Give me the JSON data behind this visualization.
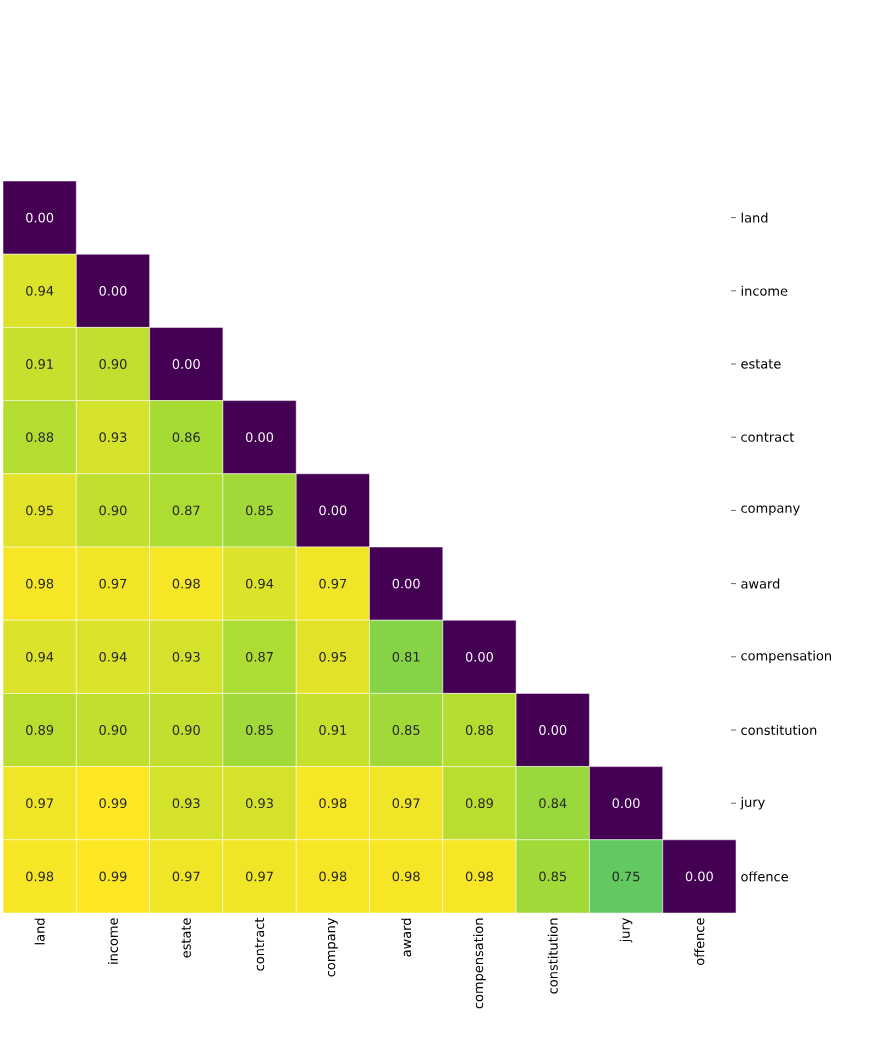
{
  "chart_data": {
    "type": "heatmap",
    "categories": [
      "land",
      "income",
      "estate",
      "contract",
      "company",
      "award",
      "compensation",
      "constitution",
      "jury",
      "offence"
    ],
    "y_categories": [
      "land",
      "income",
      "estate",
      "contract",
      "company",
      "award",
      "compensation",
      "constitution",
      "jury",
      "offence"
    ],
    "cells": [
      [
        0.0,
        null,
        null,
        null,
        null,
        null,
        null,
        null,
        null,
        null
      ],
      [
        0.94,
        0.0,
        null,
        null,
        null,
        null,
        null,
        null,
        null,
        null
      ],
      [
        0.91,
        0.9,
        0.0,
        null,
        null,
        null,
        null,
        null,
        null,
        null
      ],
      [
        0.88,
        0.93,
        0.86,
        0.0,
        null,
        null,
        null,
        null,
        null,
        null
      ],
      [
        0.95,
        0.9,
        0.87,
        0.85,
        0.0,
        null,
        null,
        null,
        null,
        null
      ],
      [
        0.98,
        0.97,
        0.98,
        0.94,
        0.97,
        0.0,
        null,
        null,
        null,
        null
      ],
      [
        0.94,
        0.94,
        0.93,
        0.87,
        0.95,
        0.81,
        0.0,
        null,
        null,
        null
      ],
      [
        0.89,
        0.9,
        0.9,
        0.85,
        0.91,
        0.85,
        0.88,
        0.0,
        null,
        null
      ],
      [
        0.97,
        0.99,
        0.93,
        0.93,
        0.98,
        0.97,
        0.89,
        0.84,
        0.0,
        null
      ],
      [
        0.98,
        0.99,
        0.97,
        0.97,
        0.98,
        0.98,
        0.98,
        0.85,
        0.75,
        0.0
      ]
    ],
    "cell_labels": [
      [
        "0.00",
        null,
        null,
        null,
        null,
        null,
        null,
        null,
        null,
        null
      ],
      [
        "0.94",
        "0.00",
        null,
        null,
        null,
        null,
        null,
        null,
        null,
        null
      ],
      [
        "0.91",
        "0.90",
        "0.00",
        null,
        null,
        null,
        null,
        null,
        null,
        null
      ],
      [
        "0.88",
        "0.93",
        "0.86",
        "0.00",
        null,
        null,
        null,
        null,
        null,
        null
      ],
      [
        "0.95",
        "0.90",
        "0.87",
        "0.85",
        "0.00",
        null,
        null,
        null,
        null,
        null
      ],
      [
        "0.98",
        "0.97",
        "0.98",
        "0.94",
        "0.97",
        "0.00",
        null,
        null,
        null,
        null
      ],
      [
        "0.94",
        "0.94",
        "0.93",
        "0.87",
        "0.95",
        "0.81",
        "0.00",
        null,
        null,
        null
      ],
      [
        "0.89",
        "0.90",
        "0.90",
        "0.85",
        "0.91",
        "0.85",
        "0.88",
        "0.00",
        null,
        null
      ],
      [
        "0.97",
        "0.99",
        "0.93",
        "0.93",
        "0.98",
        "0.97",
        "0.89",
        "0.84",
        "0.00",
        null
      ],
      [
        "0.98",
        "0.99",
        "0.97",
        "0.97",
        "0.98",
        "0.98",
        "0.98",
        "0.85",
        "0.75",
        "0.00"
      ]
    ]
  }
}
